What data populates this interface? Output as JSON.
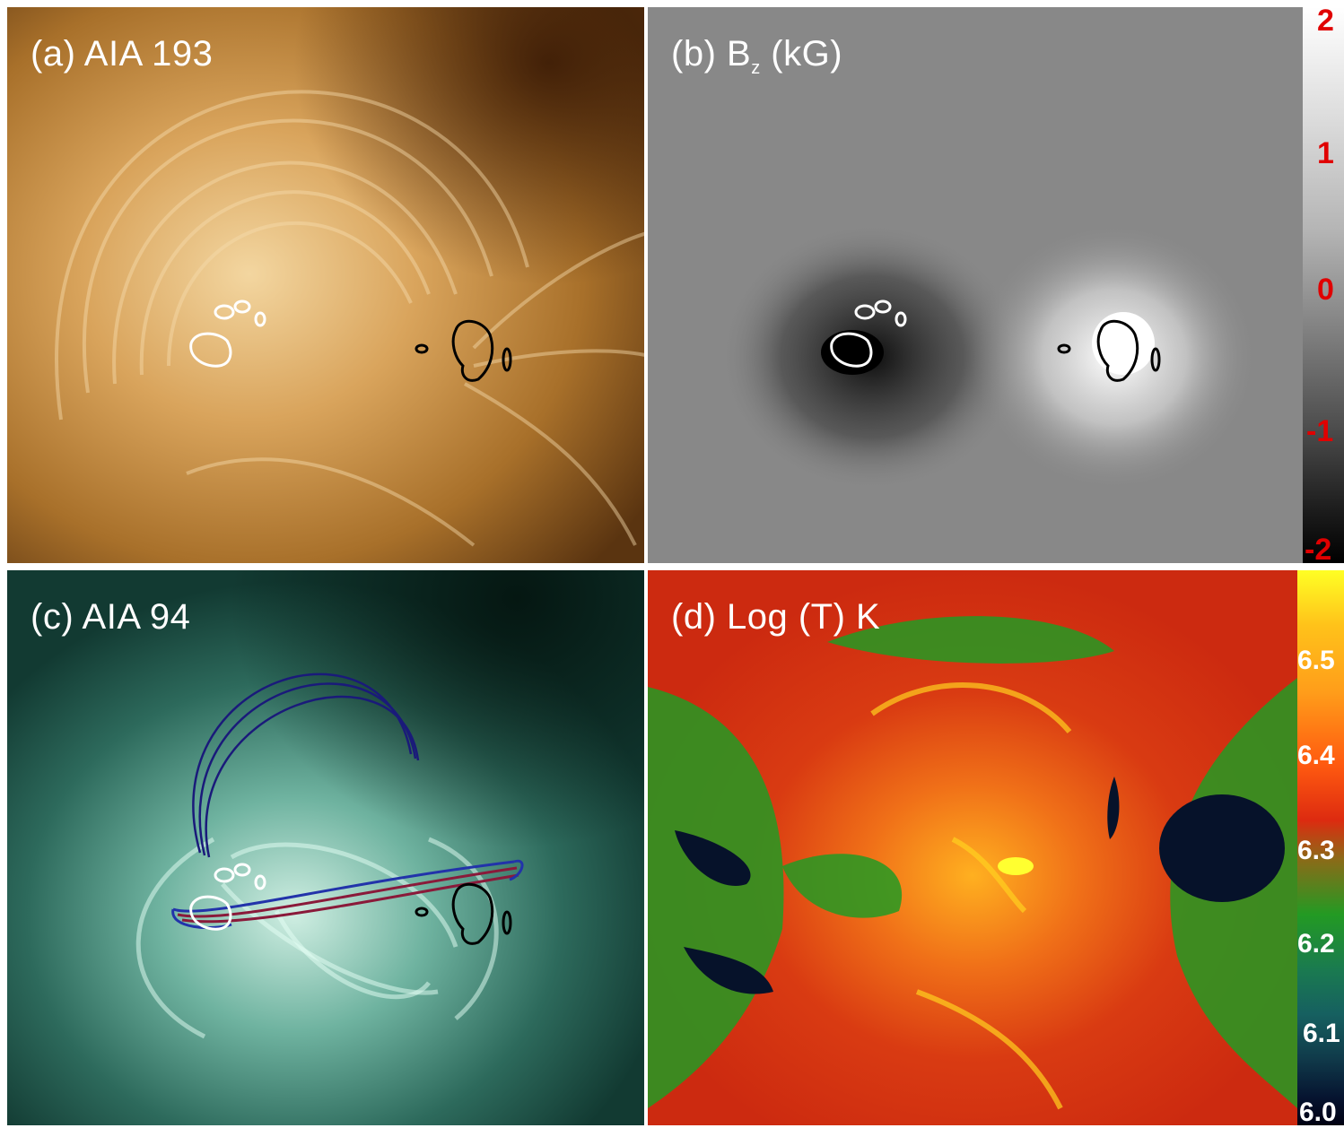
{
  "panels": [
    {
      "id": "a",
      "label_prefix": "(a)  ",
      "label_main": "AIA 193",
      "label_sub": "",
      "label_suffix": ""
    },
    {
      "id": "b",
      "label_prefix": "(b) B",
      "label_main": "",
      "label_sub": "z",
      "label_suffix": " (kG)"
    },
    {
      "id": "c",
      "label_prefix": "(c) ",
      "label_main": "AIA 94",
      "label_sub": "",
      "label_suffix": ""
    },
    {
      "id": "d",
      "label_prefix": "(d) ",
      "label_main": "Log (T) K",
      "label_sub": "",
      "label_suffix": ""
    }
  ],
  "colorbar_b": {
    "ticks": [
      "2",
      "1",
      "0",
      "-1",
      "-2"
    ],
    "tick_color": "#e00000"
  },
  "colorbar_d": {
    "ticks": [
      "6.5",
      "6.4",
      "6.3",
      "6.2",
      "6.1",
      "6.0"
    ],
    "tick_color": "#ffffff"
  },
  "colors": {
    "aia193": "#a8702a",
    "magnetogram_bg": "#888888",
    "aia94": "#2d6a5c",
    "contour_positive": "#ffffff",
    "contour_negative": "#000000",
    "fieldline_outer": "#1a1a7a",
    "fieldline_inner": "#8a1a3a"
  }
}
